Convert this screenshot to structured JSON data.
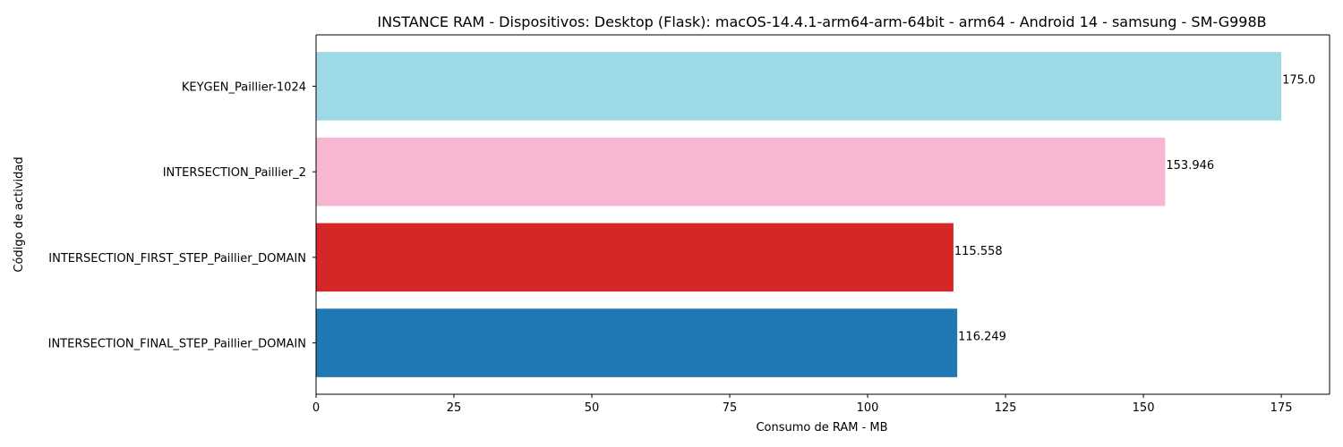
{
  "chart_data": {
    "type": "bar",
    "orientation": "horizontal",
    "title": "INSTANCE RAM - Dispositivos: Desktop (Flask): macOS-14.4.1-arm64-arm-64bit - arm64 - Android 14 - samsung - SM-G998B",
    "xlabel": "Consumo de RAM - MB",
    "ylabel": "Código de actividad",
    "xlim": [
      0,
      183.75
    ],
    "xticks": [
      0,
      25,
      50,
      75,
      100,
      125,
      150,
      175
    ],
    "grid": false,
    "categories": [
      "KEYGEN_Paillier-1024",
      "INTERSECTION_Paillier_2",
      "INTERSECTION_FIRST_STEP_Paillier_DOMAIN",
      "INTERSECTION_FINAL_STEP_Paillier_DOMAIN"
    ],
    "values": [
      175.0,
      153.946,
      115.558,
      116.249
    ],
    "value_labels": [
      "175.0",
      "153.946",
      "115.558",
      "116.249"
    ],
    "colors": [
      "#9edae5",
      "#f7b6d2",
      "#d62728",
      "#1f77b4"
    ]
  }
}
